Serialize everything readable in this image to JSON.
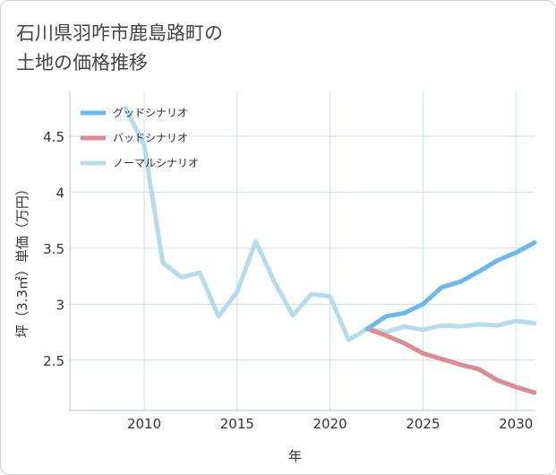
{
  "page": {
    "title_line1": "石川県羽咋市鹿島路町の",
    "title_line2": "土地の価格推移"
  },
  "chart_data": {
    "type": "line",
    "xlabel": "年",
    "ylabel": "坪（3.3㎡）単価（万円）",
    "xlim": [
      2006,
      2031
    ],
    "ylim": [
      2.05,
      4.9
    ],
    "xticks": [
      2010,
      2015,
      2020,
      2025,
      2030
    ],
    "yticks": [
      2.5,
      3,
      3.5,
      4,
      4.5
    ],
    "xtick_labels": [
      "2010",
      "2015",
      "2020",
      "2025",
      "2030"
    ],
    "ytick_labels": [
      "2.5",
      "3",
      "3.5",
      "4",
      "4.5"
    ],
    "grid": true,
    "legend_position": "top-left",
    "series": [
      {
        "name": "グッドシナリオ",
        "color": "#6bb8ec",
        "x": [
          2022,
          2023,
          2024,
          2025,
          2026,
          2027,
          2028,
          2029,
          2030,
          2031
        ],
        "y": [
          2.78,
          2.89,
          2.92,
          3.0,
          3.15,
          3.2,
          3.29,
          3.39,
          3.46,
          3.55
        ]
      },
      {
        "name": "バッドシナリオ",
        "color": "#de8a92",
        "x": [
          2022,
          2023,
          2024,
          2025,
          2026,
          2027,
          2028,
          2029,
          2030,
          2031
        ],
        "y": [
          2.78,
          2.72,
          2.65,
          2.56,
          2.51,
          2.46,
          2.42,
          2.32,
          2.26,
          2.21
        ]
      },
      {
        "name": "ノーマルシナリオ",
        "color": "#b6dcec",
        "x": [
          2009,
          2010,
          2011,
          2012,
          2013,
          2014,
          2015,
          2016,
          2017,
          2018,
          2019,
          2020,
          2021,
          2022,
          2023,
          2024,
          2025,
          2026,
          2027,
          2028,
          2029,
          2030,
          2031
        ],
        "y": [
          4.75,
          4.42,
          3.37,
          3.24,
          3.28,
          2.89,
          3.11,
          3.56,
          3.2,
          2.9,
          3.09,
          3.07,
          2.68,
          2.78,
          2.75,
          2.8,
          2.77,
          2.81,
          2.8,
          2.82,
          2.81,
          2.85,
          2.83
        ]
      }
    ]
  }
}
